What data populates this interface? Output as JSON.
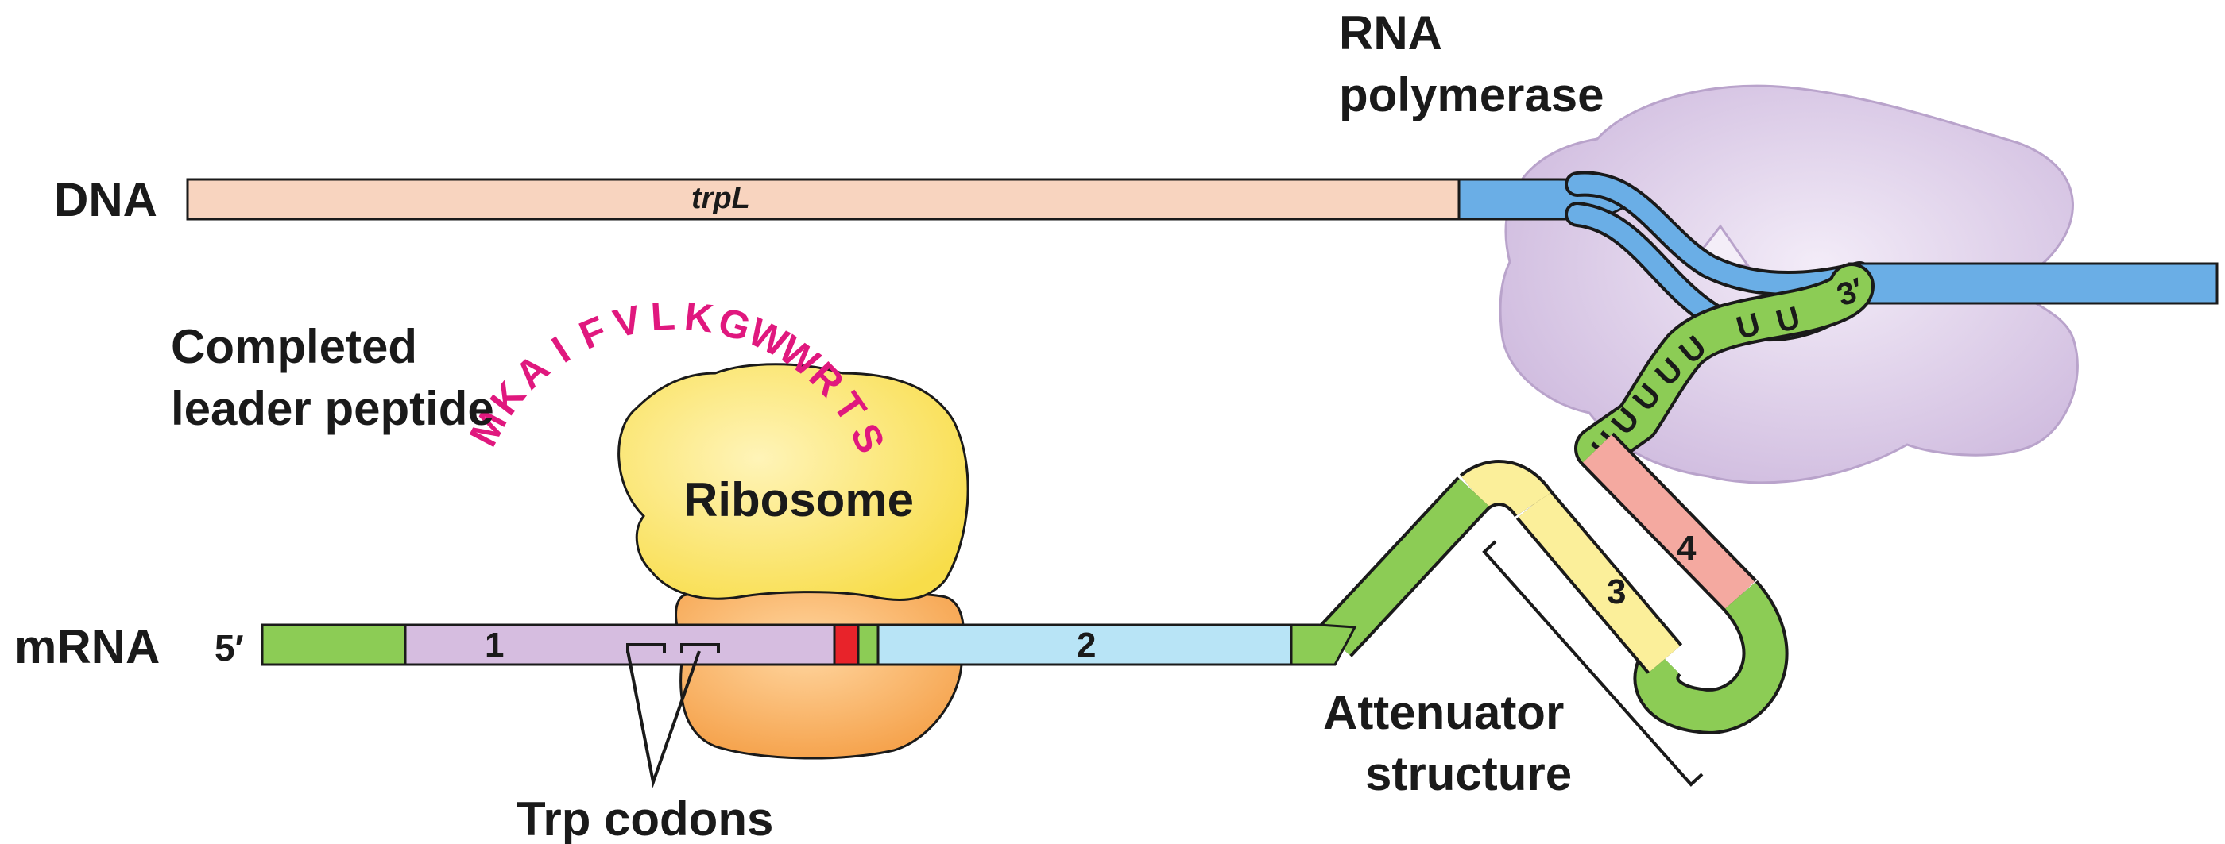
{
  "labels": {
    "dna": "DNA",
    "trpL": "trpL",
    "rna_polymerase_line1": "RNA",
    "rna_polymerase_line2": "polymerase",
    "completed_line1": "Completed",
    "completed_line2": "leader peptide",
    "ribosome": "Ribosome",
    "mrna": "mRNA",
    "five_prime": "5′",
    "region1": "1",
    "region2": "2",
    "region3": "3",
    "region4": "4",
    "three_prime": "3′",
    "trp_codons": "Trp codons",
    "attenuator_line1": "Attenuator",
    "attenuator_line2": "structure"
  },
  "peptide_letters": [
    "M",
    "K",
    "A",
    "I",
    "F",
    "V",
    "L",
    "K",
    "G",
    "W",
    "W",
    "R",
    "T",
    "S"
  ],
  "u_letters": [
    "U",
    "U",
    "U",
    "U",
    "U",
    "U",
    "U"
  ],
  "colors": {
    "dna_trpL": "#f8d4bf",
    "dna_blue": "#6aaee6",
    "polymerase": "#d8c8e6",
    "ribosome_top": "#fbe67a",
    "ribosome_bottom": "#f8b060",
    "green": "#8ccc55",
    "region1": "#d6bde0",
    "region2": "#b8e4f6",
    "region3": "#fbef9a",
    "region4": "#f4a9a0",
    "stop_red": "#e8232a",
    "peptide": "#e0187e"
  }
}
